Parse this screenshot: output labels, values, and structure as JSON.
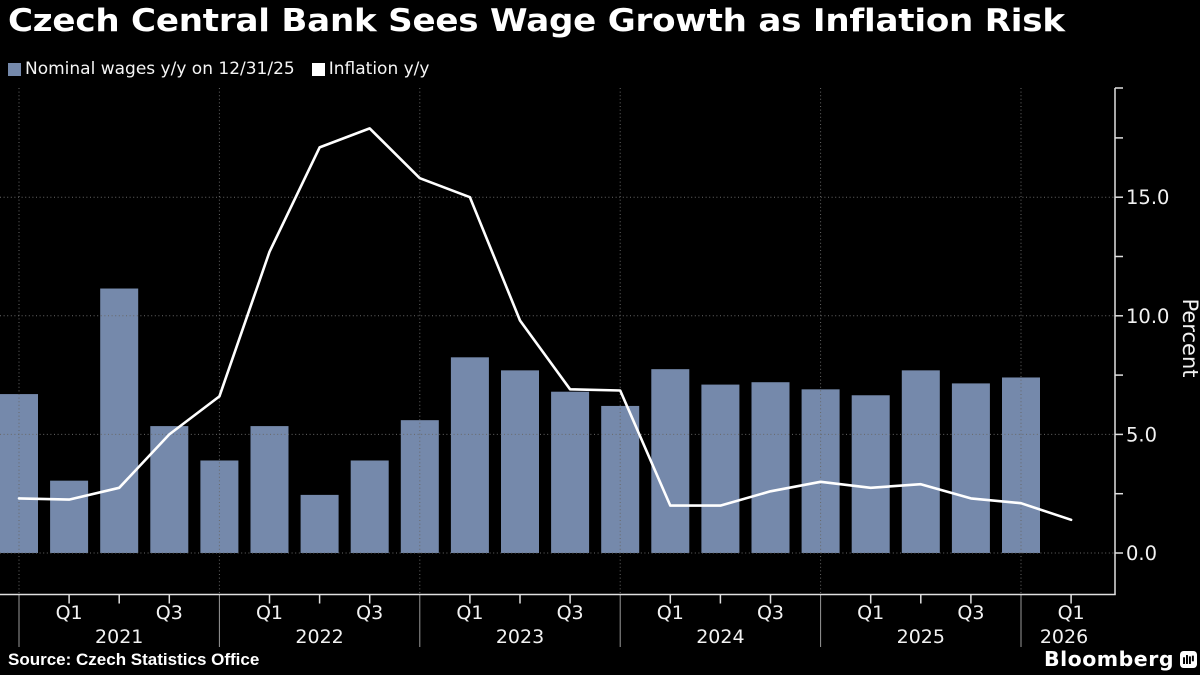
{
  "title": "Czech Central Bank Sees Wage Growth as Inflation Risk",
  "legend": [
    {
      "label": "Nominal wages y/y on 12/31/25",
      "color": "#7589ab"
    },
    {
      "label": "Inflation y/y",
      "color": "#ffffff"
    }
  ],
  "source": "Source: Czech Statistics Office",
  "brand": "Bloomberg",
  "colors": {
    "background": "#000000",
    "bar": "#7589ab",
    "line": "#ffffff",
    "grid": "#686868",
    "axis": "#e0e0e0",
    "label": "#f2f2f2"
  },
  "chart_data": {
    "type": "bar+line",
    "title": "Czech Central Bank Sees Wage Growth as Inflation Risk",
    "ylabel": "Percent",
    "y_tick_labels": [
      "0.0",
      "5.0",
      "10.0",
      "15.0"
    ],
    "y_tick_values": [
      0,
      5,
      10,
      15
    ],
    "y_minor_step": 2.5,
    "ylim": [
      0,
      19.6
    ],
    "grid": "dotted",
    "categories": [
      "2020 Q4",
      "2021 Q1",
      "2021 Q2",
      "2021 Q3",
      "2021 Q4",
      "2022 Q1",
      "2022 Q2",
      "2022 Q3",
      "2022 Q4",
      "2023 Q1",
      "2023 Q2",
      "2023 Q3",
      "2023 Q4",
      "2024 Q1",
      "2024 Q2",
      "2024 Q3",
      "2024 Q4",
      "2025 Q1",
      "2025 Q2",
      "2025 Q3",
      "2025 Q4",
      "2026 Q1"
    ],
    "series": [
      {
        "name": "Nominal wages y/y on 12/31/25",
        "type": "bar",
        "values": [
          6.7,
          3.05,
          11.15,
          5.35,
          3.9,
          5.35,
          2.45,
          3.9,
          5.6,
          8.25,
          7.7,
          6.8,
          6.2,
          7.75,
          7.1,
          7.2,
          6.9,
          6.65,
          7.7,
          7.15,
          7.4,
          null
        ]
      },
      {
        "name": "Inflation y/y",
        "type": "line",
        "values": [
          2.3,
          2.25,
          2.75,
          5.0,
          6.6,
          12.7,
          17.1,
          17.9,
          15.8,
          15.0,
          9.8,
          6.9,
          6.85,
          2.0,
          2.0,
          2.6,
          3.0,
          2.75,
          2.9,
          2.3,
          2.1,
          1.4
        ]
      }
    ],
    "x_axis": {
      "quarter_labels": [
        "Q1",
        "Q3",
        "Q1",
        "Q3",
        "Q1",
        "Q3",
        "Q1",
        "Q3",
        "Q1",
        "Q3",
        "Q1"
      ],
      "year_labels": [
        "2021",
        "2022",
        "2023",
        "2024",
        "2025",
        "2026"
      ]
    }
  }
}
